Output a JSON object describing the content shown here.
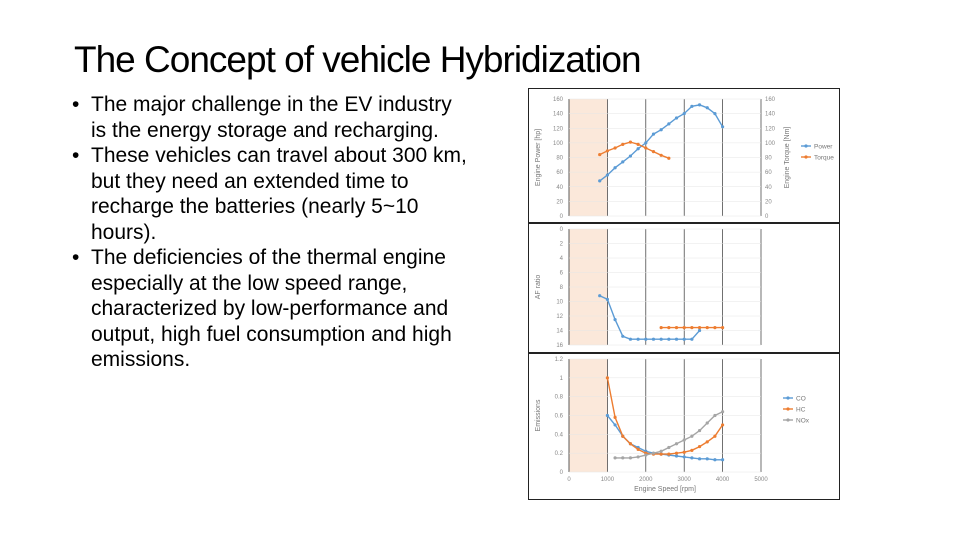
{
  "slide": {
    "title": "The Concept of vehicle Hybridization",
    "bullets": [
      "The major challenge in the EV industry is the energy storage and recharging.",
      "These vehicles can travel about 300 km, but they need an extended time to recharge the batteries (nearly 5~10 hours).",
      "The deficiencies of the thermal engine especially at the low speed range, characterized by low-performance and output, high fuel consumption and high emissions."
    ]
  },
  "colors": {
    "blue": "#5b9bd5",
    "orange": "#ed7d31",
    "gray": "#a5a5a5",
    "highlight": "#fbe5d6"
  },
  "chart_data": [
    {
      "type": "line",
      "ylabel": "Engine Power [hp]",
      "y2label": "Engine Torque [Nm]",
      "yticks": [
        "160",
        "140",
        "120",
        "100",
        "80",
        "60",
        "40",
        "20",
        "0"
      ],
      "y2ticks": [
        "160",
        "140",
        "120",
        "100",
        "80",
        "60",
        "40",
        "20",
        "0"
      ],
      "ylim": [
        0,
        160
      ],
      "xlim": [
        0,
        5000
      ],
      "grid": true,
      "legend_position": "right",
      "highlight_range": [
        0,
        1000
      ],
      "series": [
        {
          "name": "Power",
          "color": "#5b9bd5",
          "x": [
            800,
            1000,
            1200,
            1400,
            1600,
            1800,
            2000,
            2200,
            2400,
            2600,
            2800,
            3000,
            3200,
            3400,
            3600,
            3800,
            4000
          ],
          "values": [
            48,
            56,
            66,
            74,
            82,
            92,
            100,
            112,
            118,
            126,
            134,
            140,
            150,
            152,
            148,
            140,
            122
          ]
        },
        {
          "name": "Torque",
          "color": "#ed7d31",
          "x": [
            800,
            1000,
            1200,
            1400,
            1600,
            1800,
            2000,
            2200,
            2400,
            2600
          ],
          "values": [
            84,
            89,
            93,
            98,
            101,
            98,
            93,
            88,
            83,
            79
          ]
        }
      ]
    },
    {
      "type": "line",
      "ylabel": "AF ratio",
      "yticks": [
        "0",
        "2",
        "4",
        "6",
        "8",
        "10",
        "12",
        "14",
        "16"
      ],
      "ylim": [
        16,
        0
      ],
      "xlim": [
        0,
        5000
      ],
      "grid": true,
      "highlight_range": [
        0,
        1000
      ],
      "series": [
        {
          "color": "#5b9bd5",
          "x": [
            800,
            1000,
            1200,
            1400,
            1600,
            1800,
            2000,
            2200,
            2400,
            2600,
            2800,
            3000,
            3200,
            3400
          ],
          "values": [
            9.2,
            9.7,
            12.5,
            14.8,
            15.2,
            15.2,
            15.2,
            15.2,
            15.2,
            15.2,
            15.2,
            15.2,
            15.2,
            14.0
          ]
        },
        {
          "color": "#ed7d31",
          "x": [
            2400,
            2600,
            2800,
            3000,
            3200,
            3400,
            3600,
            3800,
            4000
          ],
          "values": [
            13.6,
            13.6,
            13.6,
            13.6,
            13.6,
            13.6,
            13.6,
            13.6,
            13.6
          ]
        }
      ]
    },
    {
      "type": "line",
      "xlabel": "Engine Speed [rpm]",
      "ylabel": "Emissions",
      "xticks": [
        "0",
        "1000",
        "2000",
        "3000",
        "4000",
        "5000"
      ],
      "yticks": [
        "1.2",
        "1",
        "0.8",
        "0.6",
        "0.4",
        "0.2",
        "0"
      ],
      "ylim": [
        0,
        1.2
      ],
      "xlim": [
        0,
        5000
      ],
      "grid": true,
      "legend_position": "right",
      "highlight_range": [
        0,
        1000
      ],
      "series": [
        {
          "name": "CO",
          "color": "#5b9bd5",
          "x": [
            1000,
            1200,
            1400,
            1600,
            1800,
            2000,
            2200,
            2400,
            2600,
            2800,
            3000,
            3200,
            3400,
            3600,
            3800,
            4000
          ],
          "values": [
            0.6,
            0.5,
            0.38,
            0.3,
            0.26,
            0.22,
            0.2,
            0.19,
            0.18,
            0.17,
            0.16,
            0.15,
            0.14,
            0.14,
            0.13,
            0.13
          ]
        },
        {
          "name": "HC",
          "color": "#ed7d31",
          "x": [
            1000,
            1200,
            1400,
            1600,
            1800,
            2000,
            2200,
            2400,
            2600,
            2800,
            3000,
            3200,
            3400,
            3600,
            3800,
            4000
          ],
          "values": [
            1.0,
            0.58,
            0.38,
            0.3,
            0.24,
            0.2,
            0.19,
            0.19,
            0.19,
            0.2,
            0.21,
            0.23,
            0.27,
            0.32,
            0.38,
            0.5
          ]
        },
        {
          "name": "NOx",
          "color": "#a5a5a5",
          "x": [
            1200,
            1400,
            1600,
            1800,
            2000,
            2200,
            2400,
            2600,
            2800,
            3000,
            3200,
            3400,
            3600,
            3800,
            4000
          ],
          "values": [
            0.15,
            0.15,
            0.15,
            0.16,
            0.18,
            0.2,
            0.22,
            0.26,
            0.3,
            0.34,
            0.38,
            0.44,
            0.52,
            0.6,
            0.64
          ]
        }
      ]
    }
  ]
}
